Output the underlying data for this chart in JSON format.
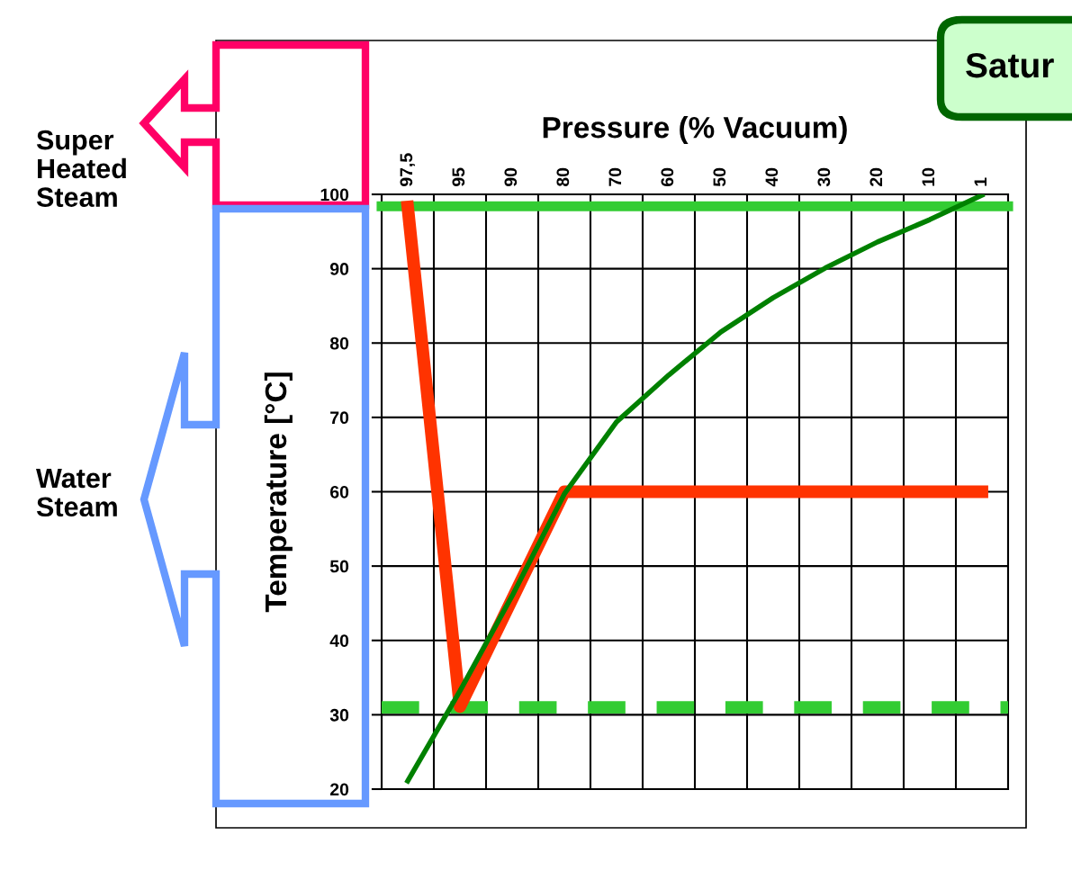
{
  "chart_data": {
    "type": "line",
    "title": "Satur",
    "xlabel": "Pressure (% Vacuum)",
    "ylabel": "Temperature [°C]",
    "annotations": [
      "Super\nHeated\nSteam",
      "Water\nSteam"
    ],
    "categories": [
      "97,5",
      "95",
      "90",
      "80",
      "70",
      "60",
      "50",
      "40",
      "30",
      "20",
      "10",
      "1"
    ],
    "ylim": [
      20,
      100
    ],
    "yticks": [
      20,
      30,
      40,
      50,
      60,
      70,
      80,
      90,
      100
    ],
    "series": [
      {
        "color": "#008000",
        "values": [
          21.1,
          33.2,
          46.0,
          59.7,
          69.4,
          75.7,
          81.5,
          86.1,
          90.1,
          93.6,
          96.6,
          99.9
        ]
      },
      {
        "color": "#ff3300",
        "values": [
          98.3,
          31.1,
          null,
          60,
          null,
          null,
          null,
          null,
          null,
          null,
          null,
          60
        ]
      }
    ],
    "ref_lines": [
      {
        "axis": "y",
        "value": 98.4,
        "label": null,
        "color": "#33cc33",
        "line_style": "solid"
      },
      {
        "axis": "y",
        "value": 31,
        "label": null,
        "color": "#33cc33",
        "line_style": "dashed"
      }
    ],
    "grid": true,
    "marker": "none",
    "line_style": "solid"
  }
}
